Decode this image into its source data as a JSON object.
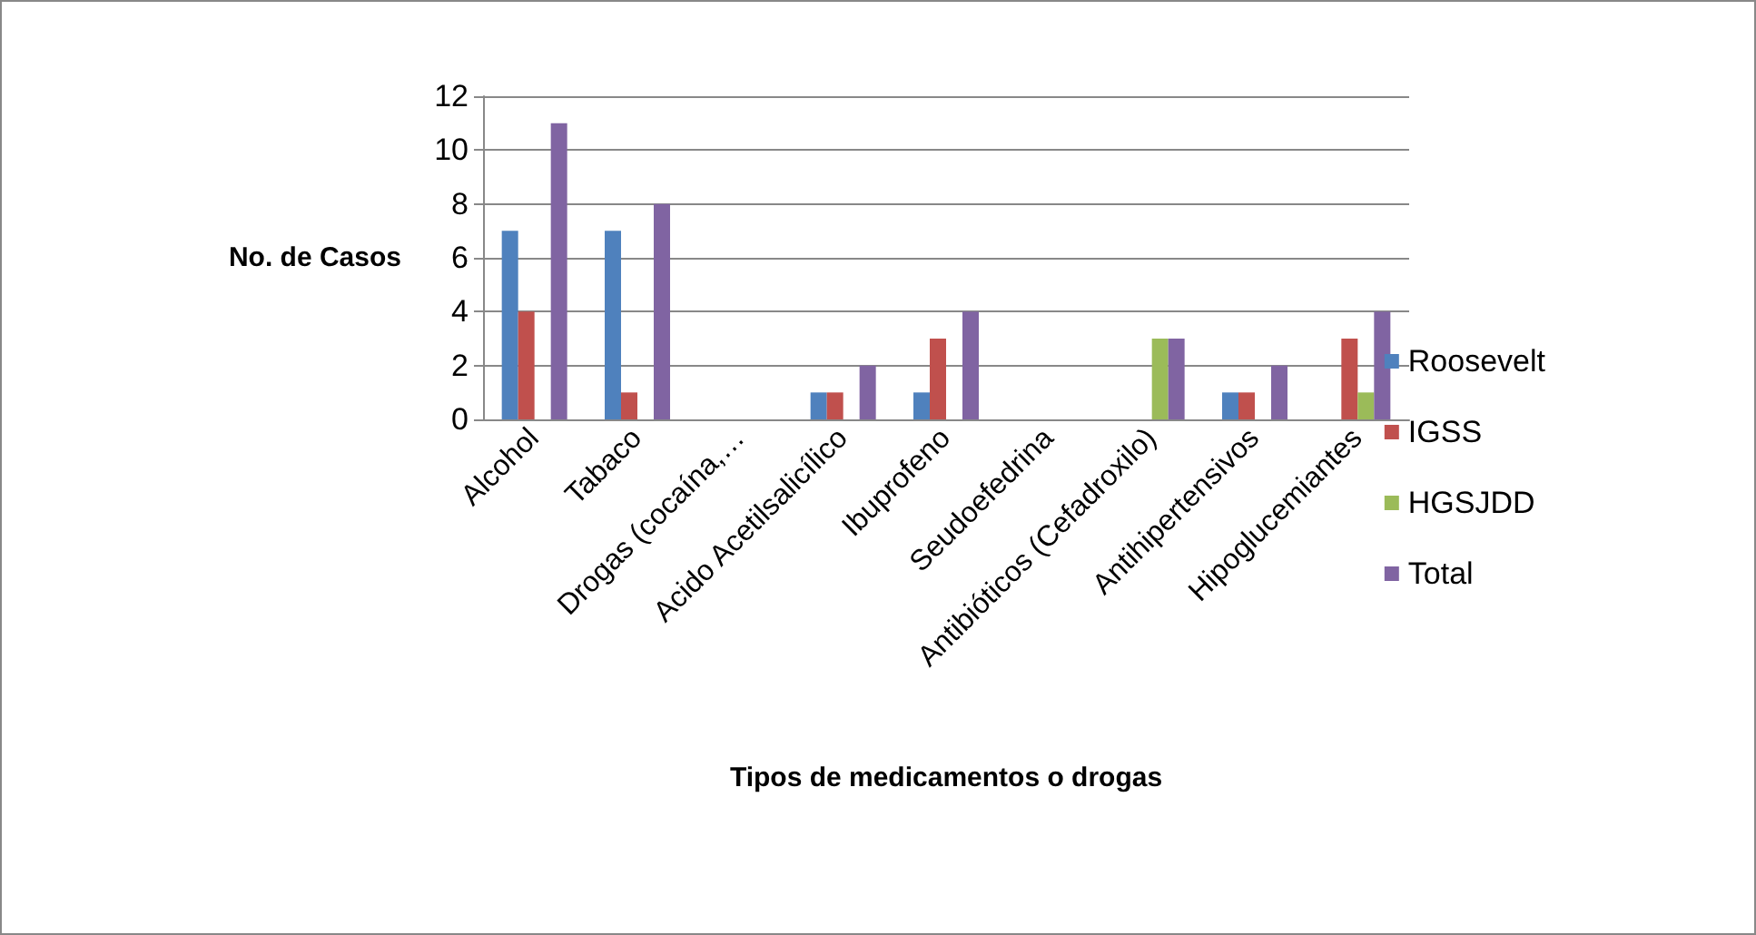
{
  "chart_data": {
    "type": "bar",
    "xlabel": "Tipos de medicamentos o drogas",
    "ylabel": "No. de Casos",
    "categories": [
      "Alcohol",
      "Tabaco",
      "Drogas (cocaína,…",
      "Acido Acetilsalicílico",
      "Ibuprofeno",
      "Seudoefedrina",
      "Antibióticos (Cefadroxilo)",
      "Antihipertensivos",
      "Hipoglucemiantes"
    ],
    "series": [
      {
        "name": "Roosevelt",
        "color": "#4f81bd",
        "values": [
          7,
          7,
          0,
          1,
          1,
          0,
          0,
          1,
          0
        ]
      },
      {
        "name": "IGSS",
        "color": "#c0504d",
        "values": [
          4,
          1,
          0,
          1,
          3,
          0,
          0,
          1,
          3
        ]
      },
      {
        "name": "HGSJDD",
        "color": "#9bbb59",
        "values": [
          0,
          0,
          0,
          0,
          0,
          0,
          3,
          0,
          1
        ]
      },
      {
        "name": "Total",
        "color": "#8064a2",
        "values": [
          11,
          8,
          0,
          2,
          4,
          0,
          3,
          2,
          4
        ]
      }
    ],
    "ylim": [
      0,
      12
    ],
    "yticks": [
      0,
      2,
      4,
      6,
      8,
      10,
      12
    ],
    "grid": "y",
    "legend": "right"
  }
}
